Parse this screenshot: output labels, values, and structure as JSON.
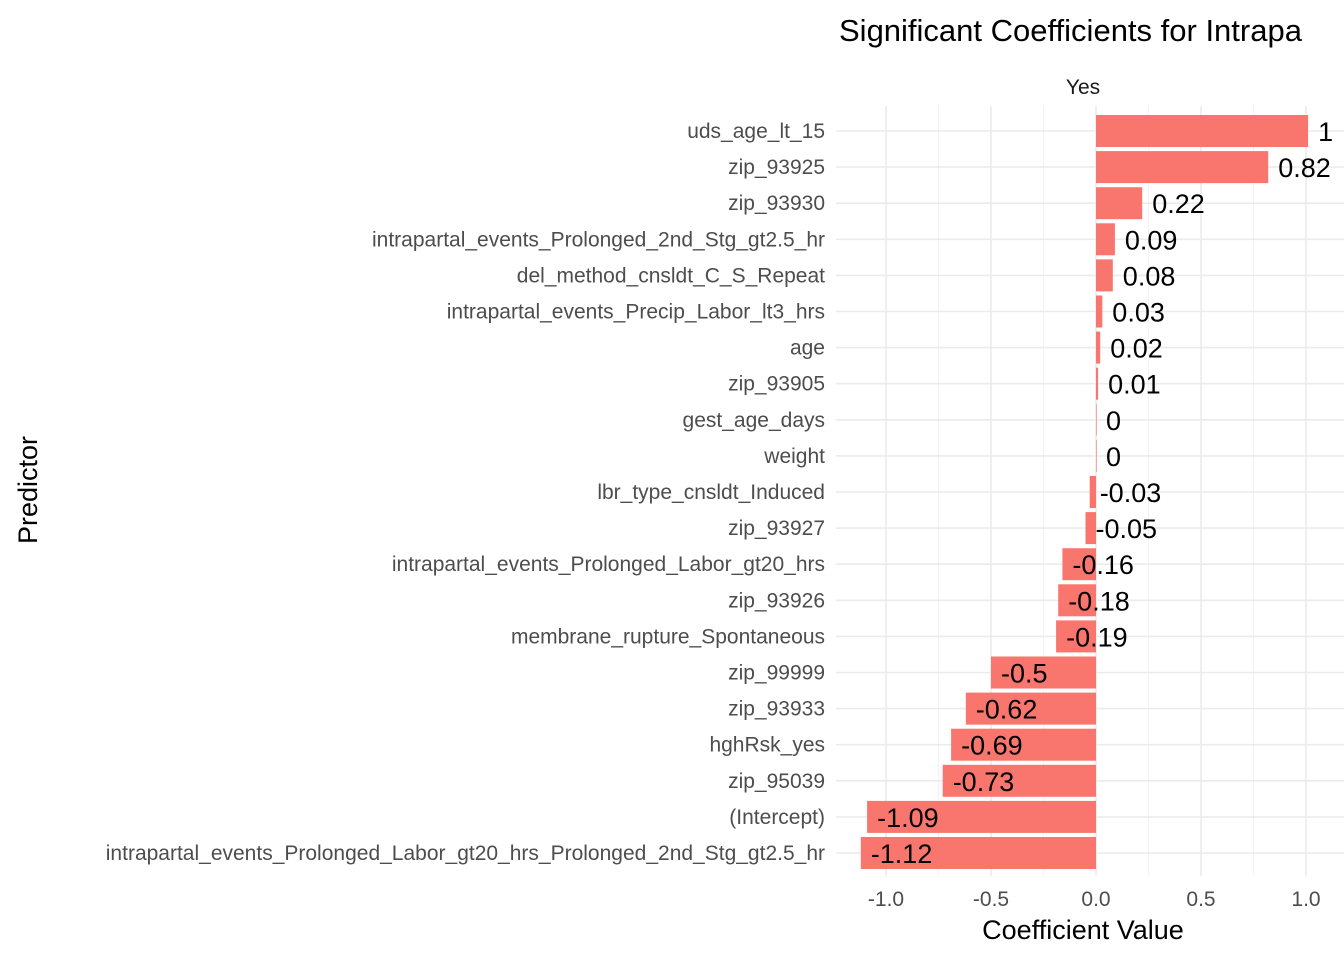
{
  "chart_data": {
    "type": "bar",
    "orientation": "horizontal",
    "title": "Significant Coefficients for Intrapa",
    "facet_label": "Yes",
    "xlabel": "Coefficient Value",
    "ylabel": "Predictor",
    "xlim": [
      -1.17,
      1.1
    ],
    "x_ticks": [
      -1.0,
      -0.5,
      0.0,
      0.5,
      1.0
    ],
    "x_tick_labels": [
      "-1.0",
      "-0.5",
      "0.0",
      "0.5",
      "1.0"
    ],
    "grid": true,
    "bar_color": "#F8766D",
    "categories": [
      "uds_age_lt_15",
      "zip_93925",
      "zip_93930",
      "intrapartal_events_Prolonged_2nd_Stg_gt2.5_hr",
      "del_method_cnsldt_C_S_Repeat",
      "intrapartal_events_Precip_Labor_lt3_hrs",
      "age",
      "zip_93905",
      "gest_age_days",
      "weight",
      "lbr_type_cnsldt_Induced",
      "zip_93927",
      "intrapartal_events_Prolonged_Labor_gt20_hrs",
      "zip_93926",
      "membrane_rupture_Spontaneous",
      "zip_99999",
      "zip_93933",
      "hghRsk_yes",
      "zip_95039",
      "(Intercept)",
      "intrapartal_events_Prolonged_Labor_gt20_hrs_Prolonged_2nd_Stg_gt2.5_hr"
    ],
    "values": [
      1.01,
      0.82,
      0.22,
      0.09,
      0.08,
      0.03,
      0.02,
      0.01,
      0.0,
      0.0,
      -0.03,
      -0.05,
      -0.16,
      -0.18,
      -0.19,
      -0.5,
      -0.62,
      -0.69,
      -0.73,
      -1.09,
      -1.12
    ],
    "value_labels": [
      "1",
      "0.82",
      "0.22",
      "0.09",
      "0.08",
      "0.03",
      "0.02",
      "0.01",
      "0",
      "0",
      "-0.03",
      "-0.05",
      "-0.16",
      "-0.18",
      "-0.19",
      "-0.5",
      "-0.62",
      "-0.69",
      "-0.73",
      "-1.09",
      "-1.12"
    ]
  }
}
